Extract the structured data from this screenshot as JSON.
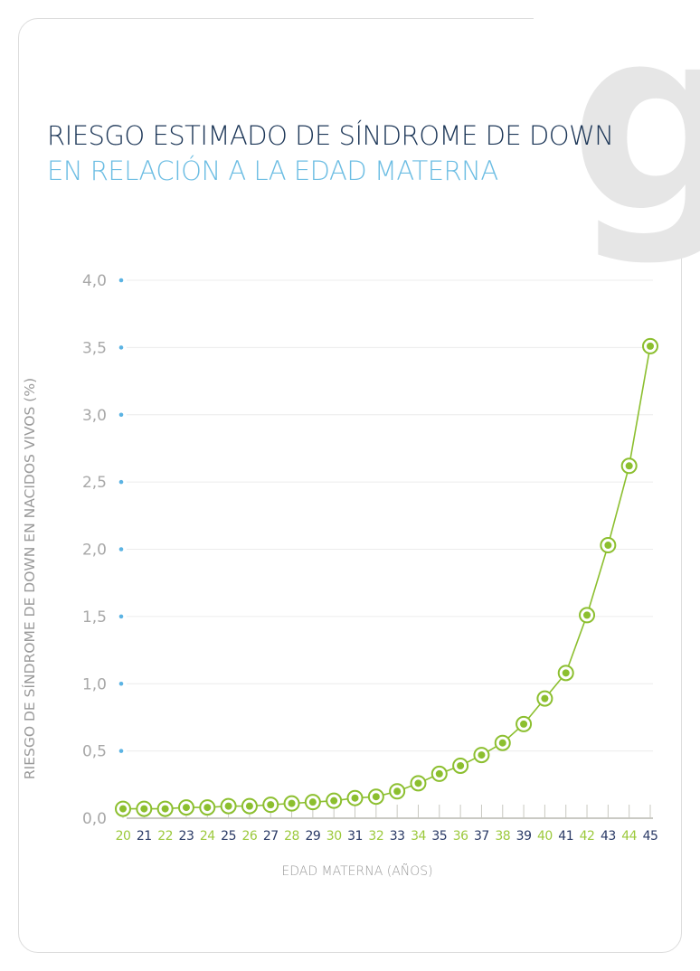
{
  "header": {
    "title_line1": "RIESGO ESTIMADO DE SÍNDROME DE DOWN",
    "title_line2": "EN RELACIÓN A LA EDAD MATERNA"
  },
  "logo": {
    "text": "g"
  },
  "colors": {
    "title_dark": "#1c3657",
    "title_light": "#6cbde3",
    "series": "#8cbf2f",
    "tick_dot": "#5bb3e3",
    "label_green": "#9cc93c",
    "label_navy": "#2a3a66"
  },
  "chart_data": {
    "type": "line",
    "title": "RIESGO ESTIMADO DE SÍNDROME DE DOWN EN RELACIÓN A LA EDAD MATERNA",
    "xlabel": "EDAD MATERNA (AÑOS)",
    "ylabel": "RIESGO DE SÍNDROME DE DOWN EN NACIDOS VIVOS (%)",
    "ylim": [
      0,
      4
    ],
    "yticks": [
      "0,0",
      "0,5",
      "1,0",
      "1,5",
      "2,0",
      "2,5",
      "3,0",
      "3,5",
      "4,0"
    ],
    "grid": true,
    "x": [
      20,
      21,
      22,
      23,
      24,
      25,
      26,
      27,
      28,
      29,
      30,
      31,
      32,
      33,
      34,
      35,
      36,
      37,
      38,
      39,
      40,
      41,
      42,
      43,
      44,
      45
    ],
    "values": [
      0.07,
      0.07,
      0.07,
      0.08,
      0.08,
      0.09,
      0.09,
      0.1,
      0.11,
      0.12,
      0.13,
      0.15,
      0.16,
      0.2,
      0.26,
      0.33,
      0.39,
      0.47,
      0.56,
      0.7,
      0.89,
      1.08,
      1.51,
      2.03,
      2.62,
      3.51
    ]
  }
}
